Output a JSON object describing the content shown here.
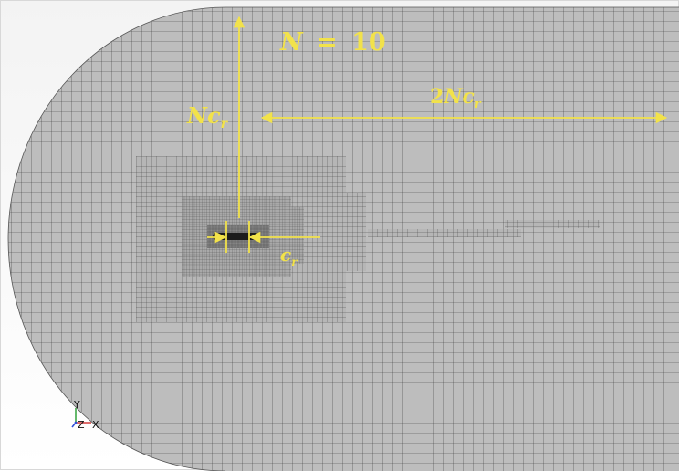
{
  "annotations": {
    "n_equation": {
      "lhs": "N",
      "op": "=",
      "rhs": "10"
    },
    "upstream_length": {
      "coef": "N",
      "var": "c",
      "sub": "r"
    },
    "downstream_length": {
      "num": "2",
      "coef": "N",
      "var": "c",
      "sub": "r"
    },
    "chord": {
      "var": "c",
      "sub": "r"
    }
  },
  "axes_triad": {
    "y": "Y",
    "z": "Z",
    "x": "X"
  },
  "colors": {
    "mesh_fill": "#bdbdbd",
    "mesh_line": "#2d2d2d",
    "annotation": "#f2e24a",
    "axis_x": "#d43b3b",
    "axis_y": "#3fa848",
    "axis_z": "#2f4fd8"
  }
}
